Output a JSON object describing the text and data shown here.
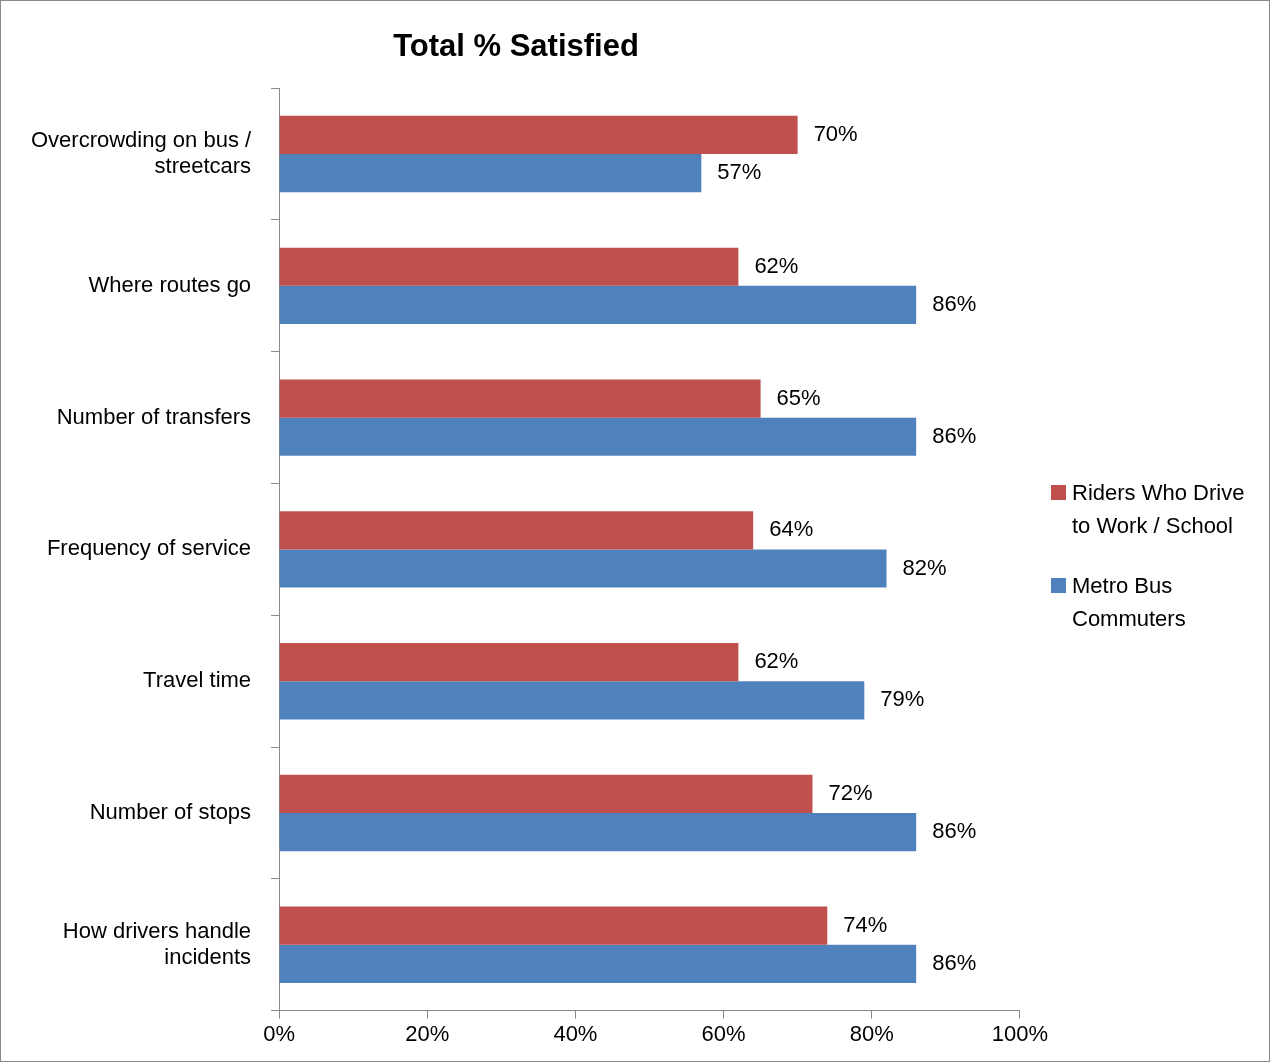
{
  "chart_data": {
    "type": "bar",
    "orientation": "horizontal",
    "title": "Total % Satisfied",
    "categories": [
      "Overcrowding on bus / streetcars",
      "Where routes go",
      "Number of transfers",
      "Frequency of service",
      "Travel time",
      "Number of stops",
      "How drivers handle incidents"
    ],
    "series": [
      {
        "name": "Riders Who Drive to Work / School",
        "color": "#c0504d",
        "values": [
          70,
          62,
          65,
          64,
          62,
          72,
          74
        ],
        "value_labels": [
          "70%",
          "62%",
          "65%",
          "64%",
          "62%",
          "72%",
          "74%"
        ]
      },
      {
        "name": "Metro Bus Commuters",
        "color": "#4f81bd",
        "values": [
          57,
          86,
          86,
          82,
          79,
          86,
          86
        ],
        "value_labels": [
          "57%",
          "86%",
          "86%",
          "82%",
          "79%",
          "86%",
          "86%"
        ]
      }
    ],
    "xlim": [
      0,
      100
    ],
    "xticks": [
      {
        "value": 0,
        "label": "0%"
      },
      {
        "value": 20,
        "label": "20%"
      },
      {
        "value": 40,
        "label": "40%"
      },
      {
        "value": 60,
        "label": "60%"
      },
      {
        "value": 80,
        "label": "80%"
      },
      {
        "value": 100,
        "label": "100%"
      }
    ],
    "grid": false,
    "legend": "right"
  }
}
